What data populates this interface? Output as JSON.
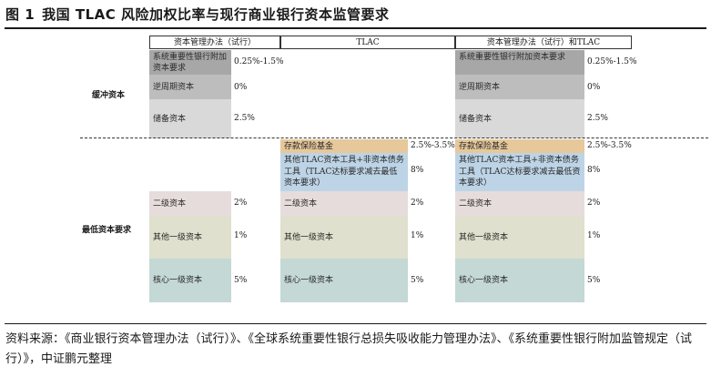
{
  "title": {
    "number": "图 1",
    "text": "我国 TLAC 风险加权比率与现行商业银行资本监管要求"
  },
  "columns": {
    "left": "资本管理办法（试行）",
    "mid": "TLAC",
    "right": "资本管理办法（试行）和TLAC"
  },
  "row_labels": {
    "buffer": "缓冲资本",
    "minimum": "最低资本要求"
  },
  "left": {
    "sib_label": "系统重要性银行附加资本要求",
    "sib_value": "0.25%-1.5%",
    "ccyb_label": "逆周期资本",
    "ccyb_value": "0%",
    "ccb_label": "储备资本",
    "ccb_value": "2.5%",
    "t2_label": "二级资本",
    "t2_value": "2%",
    "at1_label": "其他一级资本",
    "at1_value": "1%",
    "cet1_label": "核心一级资本",
    "cet1_value": "5%"
  },
  "mid": {
    "deposit_label": "存款保险基金",
    "deposit_value": "2.5%-3.5%",
    "other_label": "其他TLAC资本工具+非资本债务工具（TLAC达标要求减去最低资本要求）",
    "other_value": "8%",
    "t2_label": "二级资本",
    "t2_value": "2%",
    "at1_label": "其他一级资本",
    "at1_value": "1%",
    "cet1_label": "核心一级资本",
    "cet1_value": "5%"
  },
  "right": {
    "sib_label": "系统重要性银行附加资本要求",
    "sib_value": "0.25%-1.5%",
    "ccyb_label": "逆周期资本",
    "ccyb_value": "0%",
    "ccb_label": "储备资本",
    "ccb_value": "2.5%",
    "deposit_label": "存款保险基金",
    "deposit_value": "2.5%-3.5%",
    "other_label": "其他TLAC资本工具+非资本债务工具（TLAC达标要求减去最低资本要求）",
    "other_value": "8%",
    "t2_label": "二级资本",
    "t2_value": "2%",
    "at1_label": "其他一级资本",
    "at1_value": "1%",
    "cet1_label": "核心一级资本",
    "cet1_value": "5%"
  },
  "source": "资料来源：《商业银行资本管理办法（试行）》、《全球系统重要性银行总损失吸收能力管理办法》、《系统重要性银行附加监管规定（试行）》，中证鹏元整理"
}
